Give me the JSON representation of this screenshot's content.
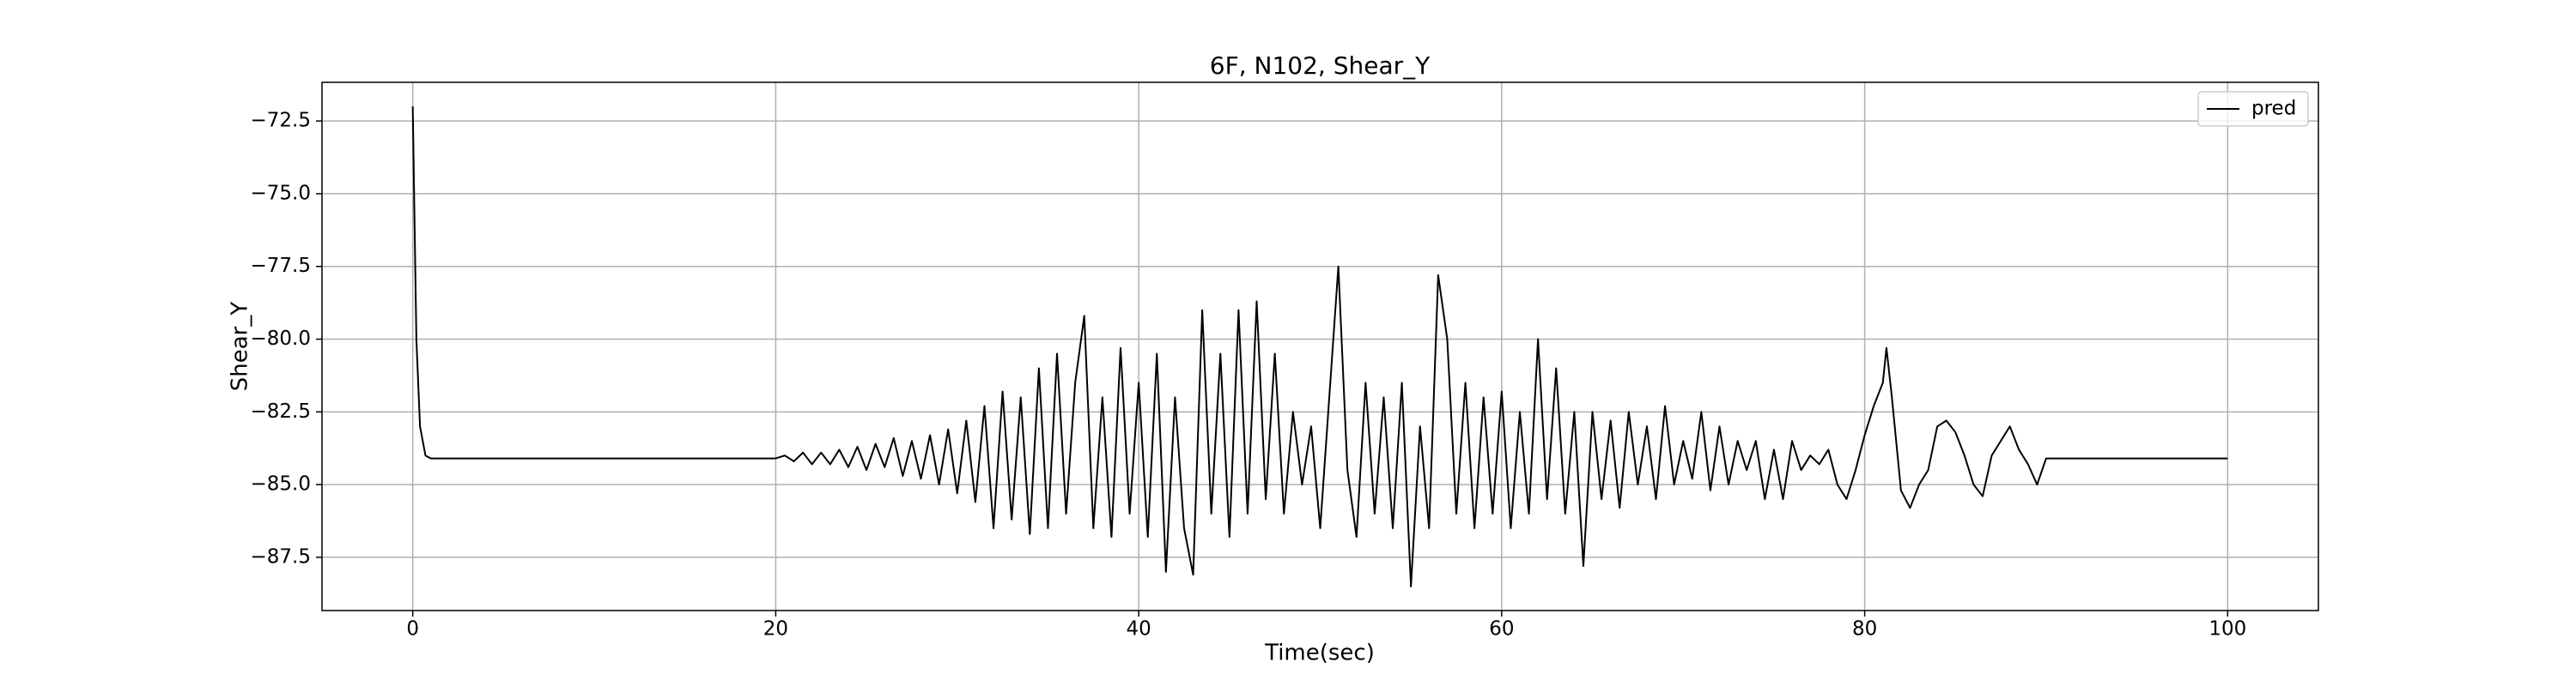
{
  "chart_data": {
    "type": "line",
    "title": "6F, N102, Shear_Y",
    "xlabel": "Time(sec)",
    "ylabel": "Shear_Y",
    "xlim": [
      -5,
      105
    ],
    "xticks": [
      0,
      20,
      40,
      60,
      80,
      100
    ],
    "ylim": [
      -89.33,
      -71.17
    ],
    "yticks": [
      {
        "value": -72.5,
        "label": "−72.5"
      },
      {
        "value": -75.0,
        "label": "−75.0"
      },
      {
        "value": -77.5,
        "label": "−77.5"
      },
      {
        "value": -80.0,
        "label": "−80.0"
      },
      {
        "value": -82.5,
        "label": "−82.5"
      },
      {
        "value": -85.0,
        "label": "−85.0"
      },
      {
        "value": -87.5,
        "label": "−87.5"
      }
    ],
    "grid": true,
    "legend": "upper right",
    "x": [
      0,
      0.1,
      0.2,
      0.4,
      0.7,
      1,
      5,
      10,
      15,
      20,
      20.5,
      21,
      21.5,
      22,
      22.5,
      23,
      23.5,
      24,
      24.5,
      25,
      25.5,
      26,
      26.5,
      27,
      27.5,
      28,
      28.5,
      29,
      29.5,
      30,
      30.5,
      31,
      31.5,
      32,
      32.5,
      33,
      33.5,
      34,
      34.5,
      35,
      35.5,
      36,
      36.5,
      37,
      37.5,
      38,
      38.5,
      39,
      39.5,
      40,
      40.5,
      41,
      41.5,
      42,
      42.5,
      43,
      43.5,
      44,
      44.5,
      45,
      45.5,
      46,
      46.5,
      47,
      47.5,
      48,
      48.5,
      49,
      49.5,
      50,
      50.5,
      51,
      51.5,
      52,
      52.5,
      53,
      53.5,
      54,
      54.5,
      55,
      55.5,
      56,
      56.5,
      57,
      57.5,
      58,
      58.5,
      59,
      59.5,
      60,
      60.5,
      61,
      61.5,
      62,
      62.5,
      63,
      63.5,
      64,
      64.5,
      65,
      65.5,
      66,
      66.5,
      67,
      67.5,
      68,
      68.5,
      69,
      69.5,
      70,
      70.5,
      71,
      71.5,
      72,
      72.5,
      73,
      73.5,
      74,
      74.5,
      75,
      75.5,
      76,
      76.5,
      77,
      77.5,
      78,
      78.5,
      79,
      79.5,
      80,
      80.5,
      81,
      81.2,
      81.5,
      82,
      82.5,
      83,
      83.5,
      84,
      84.5,
      85,
      85.5,
      86,
      86.5,
      87,
      87.5,
      88,
      88.5,
      89,
      89.5,
      90,
      95,
      100
    ],
    "series": [
      {
        "name": "pred",
        "color": "#000000",
        "values": [
          -72.0,
          -76.0,
          -80.0,
          -83.0,
          -84.0,
          -84.1,
          -84.1,
          -84.1,
          -84.1,
          -84.1,
          -84.0,
          -84.2,
          -83.9,
          -84.3,
          -83.9,
          -84.3,
          -83.8,
          -84.4,
          -83.7,
          -84.5,
          -83.6,
          -84.4,
          -83.4,
          -84.7,
          -83.5,
          -84.8,
          -83.3,
          -85.0,
          -83.1,
          -85.3,
          -82.8,
          -85.6,
          -82.3,
          -86.5,
          -81.8,
          -86.2,
          -82.0,
          -86.7,
          -81.0,
          -86.5,
          -80.5,
          -86.0,
          -81.5,
          -79.2,
          -86.5,
          -82.0,
          -86.8,
          -80.3,
          -86.0,
          -81.5,
          -86.8,
          -80.5,
          -88.0,
          -82.0,
          -86.5,
          -88.1,
          -79.0,
          -86.0,
          -80.5,
          -86.8,
          -79.0,
          -86.0,
          -78.7,
          -85.5,
          -80.5,
          -86.0,
          -82.5,
          -85.0,
          -83.0,
          -86.5,
          -82.0,
          -77.5,
          -84.5,
          -86.8,
          -81.5,
          -86.0,
          -82.0,
          -86.5,
          -81.5,
          -88.5,
          -83.0,
          -86.5,
          -77.8,
          -80.0,
          -86.0,
          -81.5,
          -86.5,
          -82.0,
          -86.0,
          -81.8,
          -86.5,
          -82.5,
          -86.0,
          -80.0,
          -85.5,
          -81.0,
          -86.0,
          -82.5,
          -87.8,
          -82.5,
          -85.5,
          -82.8,
          -85.8,
          -82.5,
          -85.0,
          -83.0,
          -85.5,
          -82.3,
          -85.0,
          -83.5,
          -84.8,
          -82.5,
          -85.2,
          -83.0,
          -85.0,
          -83.5,
          -84.5,
          -83.5,
          -85.5,
          -83.8,
          -85.5,
          -83.5,
          -84.5,
          -84.0,
          -84.3,
          -83.8,
          -85.0,
          -85.5,
          -84.5,
          -83.3,
          -82.3,
          -81.5,
          -80.3,
          -82.0,
          -85.2,
          -85.8,
          -85.0,
          -84.5,
          -83.0,
          -82.8,
          -83.2,
          -84.0,
          -85.0,
          -85.4,
          -84.0,
          -83.5,
          -83.0,
          -83.8,
          -84.3,
          -85.0,
          -84.1,
          -84.1,
          -84.1
        ]
      }
    ]
  }
}
